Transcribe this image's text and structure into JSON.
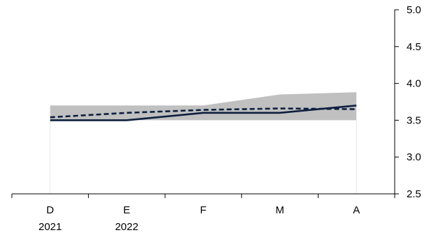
{
  "chart_data": {
    "type": "line",
    "title": "",
    "xlabel": "",
    "ylabel": "",
    "categories": [
      "D",
      "E",
      "F",
      "M",
      "A"
    ],
    "year_labels": [
      "2021",
      "2022",
      "",
      "",
      ""
    ],
    "ylim": [
      2.5,
      5.0
    ],
    "yticks": [
      "5.0",
      "4.5",
      "4.0",
      "3.5",
      "3.0",
      "2.5"
    ],
    "y_axis_side": "right",
    "grid": false,
    "band": {
      "lower": [
        3.5,
        3.5,
        3.5,
        3.5,
        3.5
      ],
      "upper": [
        3.7,
        3.7,
        3.7,
        3.85,
        3.88
      ],
      "color": "#c0c0c0"
    },
    "series": [
      {
        "values": [
          3.5,
          3.5,
          3.6,
          3.6,
          3.7
        ],
        "style": "solid",
        "color": "#0d1f3f"
      },
      {
        "values": [
          3.54,
          3.6,
          3.64,
          3.66,
          3.65
        ],
        "style": "dashed",
        "color": "#0d1f3f"
      }
    ]
  }
}
